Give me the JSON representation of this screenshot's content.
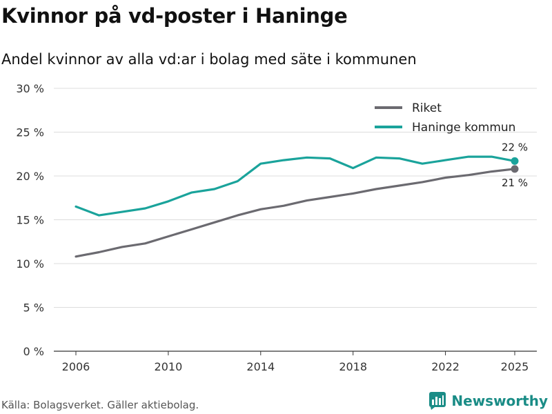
{
  "header": {
    "title": "Kvinnor på vd-poster i Haninge",
    "subtitle": "Andel kvinnor av alla vd:ar i bolag med säte i kommunen"
  },
  "footer": {
    "source": "Källa: Bolagsverket. Gäller aktiebolag.",
    "brand": "Newsworthy",
    "brand_icon": "bar-chart-logo-icon",
    "brand_color": "#1a8c86"
  },
  "chart_data": {
    "type": "line",
    "title": "",
    "xlabel": "",
    "ylabel": "",
    "x": [
      2006,
      2007,
      2008,
      2009,
      2010,
      2011,
      2012,
      2013,
      2014,
      2015,
      2016,
      2017,
      2018,
      2019,
      2020,
      2021,
      2022,
      2023,
      2024,
      2025
    ],
    "xlim": [
      2006,
      2025
    ],
    "ylim": [
      0,
      30
    ],
    "x_ticks": [
      2006,
      2010,
      2014,
      2018,
      2022,
      2025
    ],
    "y_ticks": [
      0,
      5,
      10,
      15,
      20,
      25,
      30
    ],
    "y_tick_labels": [
      "0 %",
      "5 %",
      "10 %",
      "15 %",
      "20 %",
      "25 %",
      "30 %"
    ],
    "grid": true,
    "legend_position": "top-right",
    "series": [
      {
        "name": "Riket",
        "color": "#6b6a70",
        "values": [
          10.8,
          11.3,
          11.9,
          12.3,
          13.1,
          13.9,
          14.7,
          15.5,
          16.2,
          16.6,
          17.2,
          17.6,
          18.0,
          18.5,
          18.9,
          19.3,
          19.8,
          20.1,
          20.5,
          20.8
        ],
        "end_label": "21 %"
      },
      {
        "name": "Haninge kommun",
        "color": "#1aa39b",
        "values": [
          16.5,
          15.5,
          15.9,
          16.3,
          17.1,
          18.1,
          18.5,
          19.4,
          21.4,
          21.8,
          22.1,
          22.0,
          20.9,
          22.1,
          22.0,
          21.4,
          21.8,
          22.2,
          22.2,
          21.7
        ],
        "end_label": "22 %"
      }
    ]
  }
}
